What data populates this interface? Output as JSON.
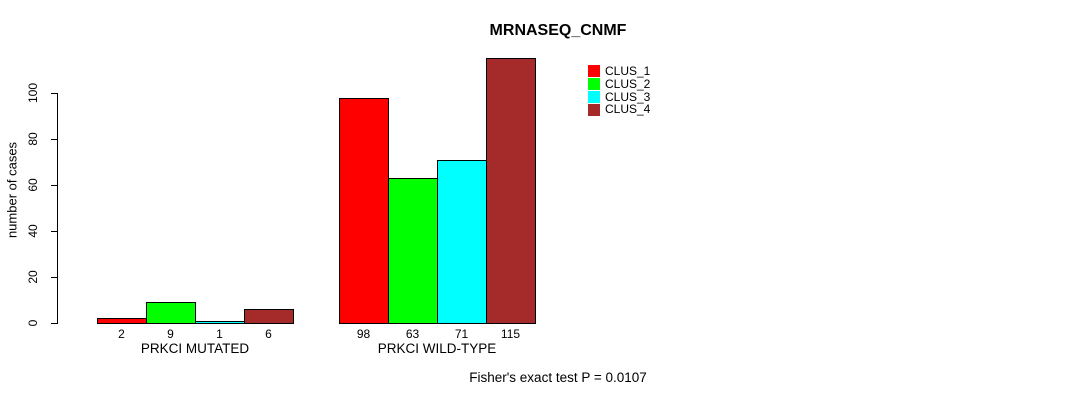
{
  "title": "MRNASEQ_CNMF",
  "caption": "Fisher's exact test P = 0.0107",
  "chart_data": {
    "type": "bar",
    "title": "MRNASEQ_CNMF",
    "xlabel": "",
    "ylabel": "number of cases",
    "categories": [
      "PRKCI MUTATED",
      "PRKCI WILD-TYPE"
    ],
    "series": [
      {
        "name": "CLUS_1",
        "color": "#FF0000",
        "values": [
          2,
          98
        ]
      },
      {
        "name": "CLUS_2",
        "color": "#00FF00",
        "values": [
          9,
          63
        ]
      },
      {
        "name": "CLUS_3",
        "color": "#00FFFF",
        "values": [
          1,
          71
        ]
      },
      {
        "name": "CLUS_4",
        "color": "#A52A2A",
        "values": [
          6,
          115
        ]
      }
    ],
    "bar_value_labels": [
      [
        2,
        9,
        1,
        6
      ],
      [
        98,
        63,
        71,
        115
      ]
    ],
    "yticks": [
      0,
      20,
      40,
      60,
      80,
      100
    ],
    "ylim": [
      0,
      115
    ],
    "grid": false,
    "bar_border_color": "#000000",
    "legend_position": "top-right",
    "legend_entries": [
      "CLUS_1",
      "CLUS_2",
      "CLUS_3",
      "CLUS_4"
    ],
    "annotation": "Fisher's exact test P = 0.0107"
  }
}
